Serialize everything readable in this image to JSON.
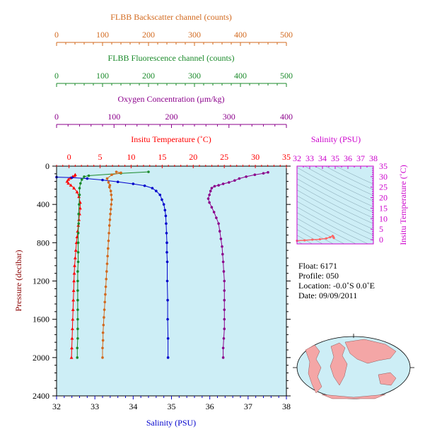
{
  "colors": {
    "backscatter": "#d2691e",
    "fluorescence": "#1a8a2a",
    "oxygen": "#8b008b",
    "temperature": "#ff0000",
    "salinity": "#0000cc",
    "ts_axis": "#cc00cc",
    "plot_bg": "#cdeef6",
    "axis": "#000000"
  },
  "axes": {
    "backscatter_title": "FLBB Backscatter channel (counts)",
    "fluorescence_title": "FLBB Fluorescence channel (counts)",
    "oxygen_title": "Oxygen Concentration (μm/kg)",
    "temperature_title": "Insitu Temperature (˚C)",
    "salinity_title": "Salinity (PSU)",
    "pressure_title": "Pressure (decibar)",
    "ts_salinity_title": "Salinity (PSU)",
    "ts_temperature_title": "Insitu Temperature (˚C)"
  },
  "info": {
    "float": "Float:  6171",
    "profile": "Profile:  050",
    "location": "Location:  -0.0˚S   0.0˚E",
    "date": "Date:  09/09/2011"
  },
  "chart_data": {
    "type": "line",
    "y_axis": {
      "label": "Pressure (decibar)",
      "range": [
        2400,
        0
      ],
      "ticks": [
        0,
        400,
        800,
        1200,
        1600,
        2000,
        2400
      ]
    },
    "x_axes": {
      "salinity": {
        "label": "Salinity (PSU)",
        "range": [
          32,
          38
        ],
        "ticks": [
          32,
          33,
          34,
          35,
          36,
          37,
          38
        ]
      },
      "temperature": {
        "label": "Insitu Temperature (˚C)",
        "range": [
          -2,
          35
        ],
        "ticks": [
          0,
          5,
          10,
          15,
          20,
          25,
          30,
          35
        ]
      },
      "oxygen": {
        "label": "Oxygen Concentration (μm/kg)",
        "range": [
          0,
          400
        ],
        "ticks": [
          0,
          100,
          200,
          300,
          400
        ]
      },
      "fluorescence": {
        "label": "FLBB Fluorescence channel (counts)",
        "range": [
          0,
          500
        ],
        "ticks": [
          0,
          100,
          200,
          300,
          400,
          500
        ]
      },
      "backscatter": {
        "label": "FLBB Backscatter channel (counts)",
        "range": [
          0,
          500
        ],
        "ticks": [
          0,
          100,
          200,
          300,
          400,
          500
        ]
      }
    },
    "series": [
      {
        "key": "temperature",
        "axis": "temperature",
        "marker": "triangle",
        "points": [
          [
            1.0,
            90
          ],
          [
            0.9,
            100
          ],
          [
            0.6,
            110
          ],
          [
            0.2,
            125
          ],
          [
            -0.1,
            140
          ],
          [
            -0.3,
            160
          ],
          [
            -0.1,
            180
          ],
          [
            0.3,
            200
          ],
          [
            0.8,
            230
          ],
          [
            1.3,
            270
          ],
          [
            1.6,
            320
          ],
          [
            1.8,
            380
          ],
          [
            1.8,
            440
          ],
          [
            1.7,
            500
          ],
          [
            1.6,
            560
          ],
          [
            1.5,
            620
          ],
          [
            1.4,
            680
          ],
          [
            1.3,
            740
          ],
          [
            1.2,
            800
          ],
          [
            1.1,
            880
          ],
          [
            1.0,
            960
          ],
          [
            0.9,
            1040
          ],
          [
            0.85,
            1120
          ],
          [
            0.8,
            1200
          ],
          [
            0.75,
            1300
          ],
          [
            0.7,
            1400
          ],
          [
            0.65,
            1500
          ],
          [
            0.6,
            1600
          ],
          [
            0.55,
            1700
          ],
          [
            0.5,
            1800
          ],
          [
            0.45,
            1900
          ],
          [
            0.4,
            2000
          ]
        ]
      },
      {
        "key": "salinity",
        "axis": "salinity",
        "marker": "circle",
        "points": [
          [
            32.0,
            115
          ],
          [
            32.4,
            120
          ],
          [
            32.8,
            130
          ],
          [
            33.2,
            145
          ],
          [
            33.6,
            165
          ],
          [
            34.0,
            185
          ],
          [
            34.3,
            205
          ],
          [
            34.5,
            230
          ],
          [
            34.6,
            260
          ],
          [
            34.7,
            300
          ],
          [
            34.75,
            350
          ],
          [
            34.8,
            400
          ],
          [
            34.83,
            460
          ],
          [
            34.85,
            520
          ],
          [
            34.86,
            600
          ],
          [
            34.87,
            700
          ],
          [
            34.88,
            800
          ],
          [
            34.88,
            900
          ],
          [
            34.89,
            1000
          ],
          [
            34.89,
            1200
          ],
          [
            34.9,
            1400
          ],
          [
            34.9,
            1600
          ],
          [
            34.91,
            1800
          ],
          [
            34.91,
            2000
          ]
        ]
      },
      {
        "key": "oxygen",
        "axis": "oxygen",
        "marker": "circle",
        "points": [
          [
            368,
            65
          ],
          [
            360,
            75
          ],
          [
            345,
            90
          ],
          [
            330,
            110
          ],
          [
            318,
            130
          ],
          [
            310,
            150
          ],
          [
            300,
            170
          ],
          [
            290,
            185
          ],
          [
            282,
            200
          ],
          [
            275,
            210
          ],
          [
            270,
            230
          ],
          [
            268,
            260
          ],
          [
            266,
            300
          ],
          [
            264,
            340
          ],
          [
            266,
            380
          ],
          [
            270,
            430
          ],
          [
            274,
            480
          ],
          [
            278,
            540
          ],
          [
            282,
            600
          ],
          [
            284,
            680
          ],
          [
            286,
            760
          ],
          [
            288,
            840
          ],
          [
            289,
            920
          ],
          [
            290,
            1000
          ],
          [
            291,
            1100
          ],
          [
            292,
            1200
          ],
          [
            292,
            1300
          ],
          [
            292,
            1400
          ],
          [
            292,
            1500
          ],
          [
            292,
            1600
          ],
          [
            292,
            1700
          ],
          [
            291,
            1800
          ],
          [
            290,
            1900
          ],
          [
            290,
            2000
          ]
        ]
      },
      {
        "key": "fluorescence",
        "axis": "fluorescence",
        "marker": "circle",
        "points": [
          [
            200,
            60
          ],
          [
            140,
            75
          ],
          [
            70,
            100
          ],
          [
            60,
            110
          ],
          [
            55,
            140
          ],
          [
            52,
            180
          ],
          [
            50,
            230
          ],
          [
            50,
            300
          ],
          [
            49,
            400
          ],
          [
            48,
            500
          ],
          [
            48,
            600
          ],
          [
            47,
            700
          ],
          [
            47,
            800
          ],
          [
            47,
            900
          ],
          [
            47,
            1000
          ],
          [
            46,
            1100
          ],
          [
            46,
            1200
          ],
          [
            46,
            1300
          ],
          [
            46,
            1400
          ],
          [
            46,
            1500
          ],
          [
            46,
            1600
          ],
          [
            46,
            1700
          ],
          [
            46,
            1800
          ],
          [
            45,
            1900
          ],
          [
            45,
            2000
          ]
        ]
      },
      {
        "key": "backscatter",
        "axis": "backscatter",
        "marker": "circle",
        "points": [
          [
            130,
            60
          ],
          [
            140,
            70
          ],
          [
            120,
            90
          ],
          [
            110,
            130
          ],
          [
            113,
            170
          ],
          [
            116,
            200
          ],
          [
            115,
            220
          ],
          [
            118,
            260
          ],
          [
            119,
            300
          ],
          [
            120,
            350
          ],
          [
            119,
            400
          ],
          [
            118,
            450
          ],
          [
            117,
            500
          ],
          [
            116,
            560
          ],
          [
            115,
            620
          ],
          [
            114,
            700
          ],
          [
            113,
            780
          ],
          [
            112,
            860
          ],
          [
            111,
            940
          ],
          [
            110,
            1020
          ],
          [
            109,
            1100
          ],
          [
            108,
            1180
          ],
          [
            107,
            1260
          ],
          [
            106,
            1340
          ],
          [
            105,
            1420
          ],
          [
            104,
            1500
          ],
          [
            103,
            1580
          ],
          [
            102,
            1660
          ],
          [
            101,
            1740
          ],
          [
            101,
            1820
          ],
          [
            100,
            1900
          ],
          [
            100,
            2000
          ]
        ]
      }
    ],
    "ts_diagram": {
      "x_axis": {
        "label": "Salinity (PSU)",
        "range": [
          32,
          38
        ],
        "ticks": [
          32,
          33,
          34,
          35,
          36,
          37,
          38
        ]
      },
      "y_axis": {
        "label": "Insitu Temperature (˚C)",
        "range": [
          -2,
          35
        ],
        "ticks": [
          0,
          5,
          10,
          15,
          20,
          25,
          30,
          35
        ]
      },
      "points": [
        [
          32.0,
          -0.5
        ],
        [
          32.6,
          -0.3
        ],
        [
          33.2,
          0.0
        ],
        [
          33.8,
          0.2
        ],
        [
          34.3,
          0.6
        ],
        [
          34.6,
          1.2
        ],
        [
          34.8,
          1.8
        ],
        [
          34.85,
          1.4
        ],
        [
          34.9,
          0.8
        ]
      ]
    }
  }
}
